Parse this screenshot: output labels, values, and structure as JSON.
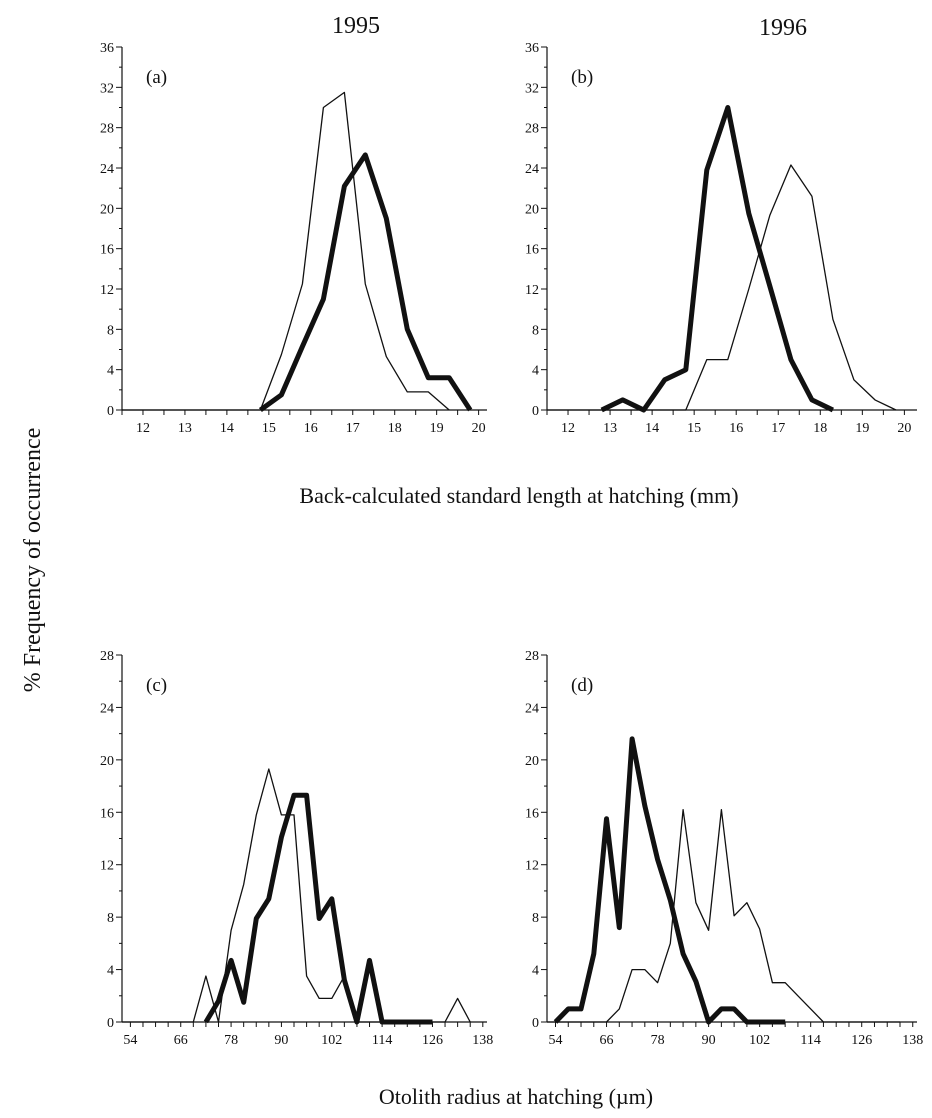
{
  "figure": {
    "y_axis_title": "% Frequency of occurrence",
    "col_titles": [
      "1995",
      "1996"
    ],
    "x_title_top": "Back-calculated standard length at hatching (mm)",
    "x_title_bottom": "Otolith radius at hatching (µm)"
  },
  "chart_data": [
    {
      "type": "line",
      "panel_label": "(a)",
      "xlim": [
        11.5,
        20.2
      ],
      "ylim": [
        0,
        36
      ],
      "xticks": [
        12,
        13,
        14,
        15,
        16,
        17,
        18,
        19,
        20
      ],
      "yticks": [
        0,
        4,
        8,
        12,
        16,
        20,
        24,
        28,
        32,
        36
      ],
      "grid": false,
      "series": [
        {
          "style": "thin",
          "x": [
            11.5,
            14.8,
            15.3,
            15.8,
            16.3,
            16.8,
            17.3,
            17.8,
            18.3,
            18.8,
            19.3
          ],
          "y": [
            0,
            0,
            5.5,
            12.5,
            30,
            31.5,
            12.5,
            5.3,
            1.8,
            1.8,
            0
          ]
        },
        {
          "style": "thick",
          "x": [
            14.8,
            15.3,
            15.8,
            16.3,
            16.8,
            17.3,
            17.8,
            18.3,
            18.8,
            19.3,
            19.8
          ],
          "y": [
            0,
            1.5,
            6.3,
            11,
            22.2,
            25.3,
            19,
            8,
            3.2,
            3.2,
            0
          ]
        }
      ]
    },
    {
      "type": "line",
      "panel_label": "(b)",
      "xlim": [
        11.5,
        20.3
      ],
      "ylim": [
        0,
        36
      ],
      "xticks": [
        12,
        13,
        14,
        15,
        16,
        17,
        18,
        19,
        20
      ],
      "yticks": [
        0,
        4,
        8,
        12,
        16,
        20,
        24,
        28,
        32,
        36
      ],
      "grid": false,
      "series": [
        {
          "style": "thin",
          "x": [
            11.5,
            14.8,
            15.3,
            15.8,
            16.3,
            16.8,
            17.3,
            17.8,
            18.3,
            18.8,
            19.3,
            19.8
          ],
          "y": [
            0,
            0,
            5,
            5,
            12,
            19.3,
            24.3,
            21.2,
            9,
            3,
            1,
            0
          ]
        },
        {
          "style": "thick",
          "x": [
            12.8,
            13.3,
            13.8,
            14.3,
            14.8,
            15.3,
            15.8,
            16.3,
            16.8,
            17.3,
            17.8,
            18.3
          ],
          "y": [
            0,
            1,
            0,
            3,
            4,
            23.8,
            30,
            19.5,
            12.3,
            5,
            1,
            0
          ]
        }
      ]
    },
    {
      "type": "line",
      "panel_label": "(c)",
      "xlim": [
        52,
        139
      ],
      "ylim": [
        0,
        28
      ],
      "xticks": [
        54,
        66,
        78,
        90,
        102,
        114,
        126,
        138
      ],
      "xtick_step_minor": 3,
      "yticks": [
        0,
        4,
        8,
        12,
        16,
        20,
        24,
        28
      ],
      "grid": false,
      "series": [
        {
          "style": "thin",
          "x": [
            52,
            69,
            72,
            75,
            78,
            81,
            84,
            87,
            90,
            93,
            96,
            99,
            102,
            105,
            108,
            111,
            114,
            117,
            120,
            123,
            126,
            129,
            132,
            135
          ],
          "y": [
            0,
            0,
            3.5,
            0,
            7,
            10.5,
            15.8,
            19.3,
            15.8,
            15.8,
            3.5,
            1.8,
            1.8,
            3.5,
            0,
            0,
            0,
            0,
            0,
            0,
            0,
            0,
            1.8,
            0
          ]
        },
        {
          "style": "thick",
          "x": [
            72,
            75,
            78,
            81,
            84,
            87,
            90,
            93,
            96,
            99,
            102,
            105,
            108,
            111,
            114,
            117,
            120,
            123,
            126
          ],
          "y": [
            0,
            1.6,
            4.7,
            1.5,
            7.9,
            9.4,
            14.1,
            17.3,
            17.3,
            7.9,
            9.4,
            3.2,
            0,
            4.7,
            0,
            0,
            0,
            0,
            0
          ]
        }
      ]
    },
    {
      "type": "line",
      "panel_label": "(d)",
      "xlim": [
        52,
        139
      ],
      "ylim": [
        0,
        28
      ],
      "xticks": [
        54,
        66,
        78,
        90,
        102,
        114,
        126,
        138
      ],
      "xtick_step_minor": 3,
      "yticks": [
        0,
        4,
        8,
        12,
        16,
        20,
        24,
        28
      ],
      "grid": false,
      "series": [
        {
          "style": "thin",
          "x": [
            52,
            66,
            69,
            72,
            75,
            78,
            81,
            84,
            87,
            90,
            93,
            96,
            99,
            102,
            105,
            108,
            111,
            114,
            117,
            120,
            123,
            126,
            129,
            132,
            135
          ],
          "y": [
            0,
            0,
            1,
            4,
            4,
            3,
            6,
            16.2,
            9.1,
            7,
            16.2,
            8.1,
            9.1,
            7.1,
            3,
            3,
            2,
            1,
            0,
            0,
            0,
            0,
            0,
            0,
            0
          ]
        },
        {
          "style": "thick",
          "x": [
            54,
            57,
            60,
            63,
            66,
            69,
            72,
            75,
            78,
            81,
            84,
            87,
            90,
            93,
            96,
            99,
            102,
            105,
            108
          ],
          "y": [
            0,
            1,
            1,
            5.2,
            15.5,
            7.2,
            21.6,
            16.5,
            12.4,
            9.3,
            5.2,
            3.1,
            0,
            1,
            1,
            0,
            0,
            0,
            0
          ]
        }
      ]
    }
  ]
}
